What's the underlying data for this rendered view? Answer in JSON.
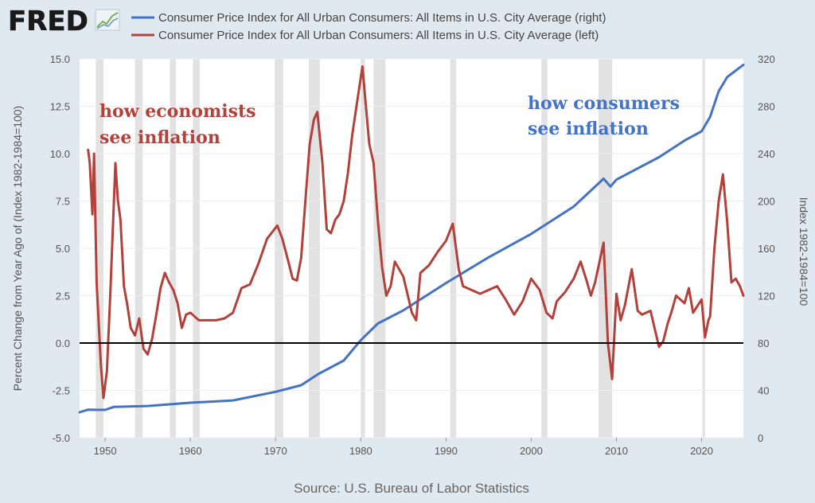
{
  "header": {
    "logo_text": "FRED",
    "logo_icon": "chart-line-icon"
  },
  "footer": {
    "source": "Source: U.S. Bureau of Labor Statistics"
  },
  "colors": {
    "background": "#e1e9f0",
    "plot_background": "#ffffff",
    "recession": "#e2e2e2",
    "cpi_index": "#4472c4",
    "cpi_yoy": "#b2413b",
    "zero_line": "#000000"
  },
  "chart_data": {
    "type": "line",
    "x_range": [
      1947,
      2024.9
    ],
    "x_ticks": [
      1950,
      1960,
      1970,
      1980,
      1990,
      2000,
      2010,
      2020
    ],
    "x_tick_labels": [
      "1950",
      "1960",
      "1970",
      "1980",
      "1990",
      "2000",
      "2010",
      "2020"
    ],
    "left_axis": {
      "label": "Percent Change from Year Ago of (Index 1982-1984=100)",
      "range": [
        -5,
        15
      ],
      "ticks": [
        -5,
        -2.5,
        0,
        2.5,
        5,
        7.5,
        10,
        12.5,
        15
      ],
      "tick_labels": [
        "-5.0",
        "-2.5",
        "0.0",
        "2.5",
        "5.0",
        "7.5",
        "10.0",
        "12.5",
        "15.0"
      ]
    },
    "right_axis": {
      "label": "Index 1982-1984=100",
      "range": [
        0,
        320
      ],
      "ticks": [
        0,
        40,
        80,
        120,
        160,
        200,
        240,
        280,
        320
      ],
      "tick_labels": [
        "0",
        "40",
        "80",
        "120",
        "160",
        "200",
        "240",
        "280",
        "320"
      ]
    },
    "grid": "horizontal",
    "legend_position": "top",
    "recessions": [
      [
        1948.9,
        1949.8
      ],
      [
        1953.5,
        1954.4
      ],
      [
        1957.6,
        1958.3
      ],
      [
        1960.3,
        1961.1
      ],
      [
        1969.9,
        1970.9
      ],
      [
        1973.9,
        1975.2
      ],
      [
        1980.0,
        1980.5
      ],
      [
        1981.5,
        1982.9
      ],
      [
        1990.5,
        1991.2
      ],
      [
        2001.2,
        2001.9
      ],
      [
        2007.9,
        2009.5
      ],
      [
        2020.1,
        2020.4
      ]
    ],
    "annotations": [
      {
        "text_lines": [
          "how economists",
          "see inflation"
        ],
        "series": "cpi_yoy"
      },
      {
        "text_lines": [
          "how consumers",
          "see inflation"
        ],
        "series": "cpi_index"
      }
    ],
    "series": [
      {
        "key": "cpi_index",
        "name": "Consumer Price Index for All Urban Consumers: All Items in U.S. City Average (right)",
        "axis": "right",
        "x": [
          1947,
          1948,
          1950,
          1951,
          1955,
          1960,
          1965,
          1970,
          1973,
          1975,
          1978,
          1980,
          1982,
          1985,
          1990,
          1995,
          2000,
          2005,
          2008.5,
          2009.3,
          2010,
          2015,
          2018,
          2020,
          2021,
          2022,
          2023,
          2024.9
        ],
        "values": [
          21.5,
          23.7,
          23.5,
          26,
          26.8,
          29.6,
          31.5,
          38.8,
          44.4,
          53.8,
          65.2,
          82.4,
          96.5,
          107.6,
          130.7,
          152.4,
          172.2,
          195.3,
          218.8,
          212.2,
          218,
          237,
          251,
          258.8,
          271,
          292.7,
          304.7,
          315
        ]
      },
      {
        "key": "cpi_yoy",
        "name": "Consumer Price Index for All Urban Consumers: All Items in U.S. City Average (left)",
        "axis": "left",
        "x": [
          1948,
          1948.2,
          1948.5,
          1948.7,
          1949,
          1949.5,
          1949.8,
          1950.2,
          1950.6,
          1951.2,
          1951.5,
          1951.8,
          1952.2,
          1952.6,
          1953,
          1953.5,
          1954,
          1954.5,
          1955,
          1955.5,
          1956,
          1956.5,
          1957,
          1957.5,
          1958,
          1958.5,
          1959,
          1959.5,
          1960,
          1960.5,
          1961,
          1962,
          1963,
          1964,
          1965,
          1966,
          1967,
          1968,
          1969,
          1970.2,
          1970.8,
          1971.5,
          1972,
          1972.5,
          1973,
          1973.5,
          1974,
          1974.5,
          1974.9,
          1975.5,
          1976,
          1976.5,
          1977,
          1977.5,
          1978,
          1978.5,
          1979,
          1979.5,
          1980.2,
          1980.5,
          1981,
          1981.5,
          1982,
          1982.5,
          1983,
          1983.5,
          1984,
          1985,
          1986,
          1986.5,
          1987,
          1988,
          1989,
          1990,
          1990.8,
          1991.5,
          1992,
          1993,
          1994,
          1995,
          1996,
          1997,
          1998,
          1999,
          2000,
          2001,
          2001.8,
          2002.5,
          2003,
          2004,
          2005,
          2005.8,
          2006.5,
          2007,
          2007.5,
          2008.5,
          2009,
          2009.5,
          2010,
          2010.5,
          2011,
          2011.8,
          2012.5,
          2013,
          2014,
          2015,
          2015.5,
          2016,
          2016.5,
          2017,
          2018,
          2018.5,
          2019,
          2020,
          2020.4,
          2020.8,
          2021,
          2021.5,
          2022,
          2022.5,
          2023,
          2023.5,
          2024,
          2024.5,
          2024.9
        ],
        "values": [
          10.2,
          9.5,
          6.8,
          10,
          3.2,
          -1.2,
          -2.9,
          -1.5,
          2.5,
          9.5,
          7.5,
          6.5,
          3,
          2,
          0.8,
          0.4,
          1.3,
          -0.3,
          -0.6,
          0.2,
          1.5,
          2.9,
          3.7,
          3.2,
          2.8,
          2.1,
          0.8,
          1.5,
          1.6,
          1.4,
          1.2,
          1.2,
          1.2,
          1.3,
          1.6,
          2.9,
          3.1,
          4.2,
          5.5,
          6.2,
          5.5,
          4.3,
          3.4,
          3.3,
          4.5,
          7.5,
          10.5,
          11.8,
          12.2,
          9.5,
          6,
          5.8,
          6.5,
          6.8,
          7.5,
          9,
          11,
          12.5,
          14.6,
          13,
          10.5,
          9.5,
          6.5,
          4,
          2.5,
          3,
          4.3,
          3.5,
          1.6,
          1.2,
          3.7,
          4.1,
          4.8,
          5.4,
          6.3,
          3.9,
          3,
          2.8,
          2.6,
          2.8,
          3,
          2.3,
          1.5,
          2.2,
          3.4,
          2.8,
          1.6,
          1.3,
          2.2,
          2.7,
          3.4,
          4.3,
          3.3,
          2.5,
          3.2,
          5.3,
          0,
          -1.9,
          2.6,
          1.2,
          2,
          3.9,
          1.7,
          1.5,
          1.7,
          -0.2,
          0.1,
          1,
          1.7,
          2.5,
          2.1,
          2.9,
          1.6,
          2.3,
          0.3,
          1.2,
          1.4,
          5,
          7.5,
          8.9,
          6.4,
          3.2,
          3.4,
          3,
          2.5
        ]
      }
    ]
  }
}
